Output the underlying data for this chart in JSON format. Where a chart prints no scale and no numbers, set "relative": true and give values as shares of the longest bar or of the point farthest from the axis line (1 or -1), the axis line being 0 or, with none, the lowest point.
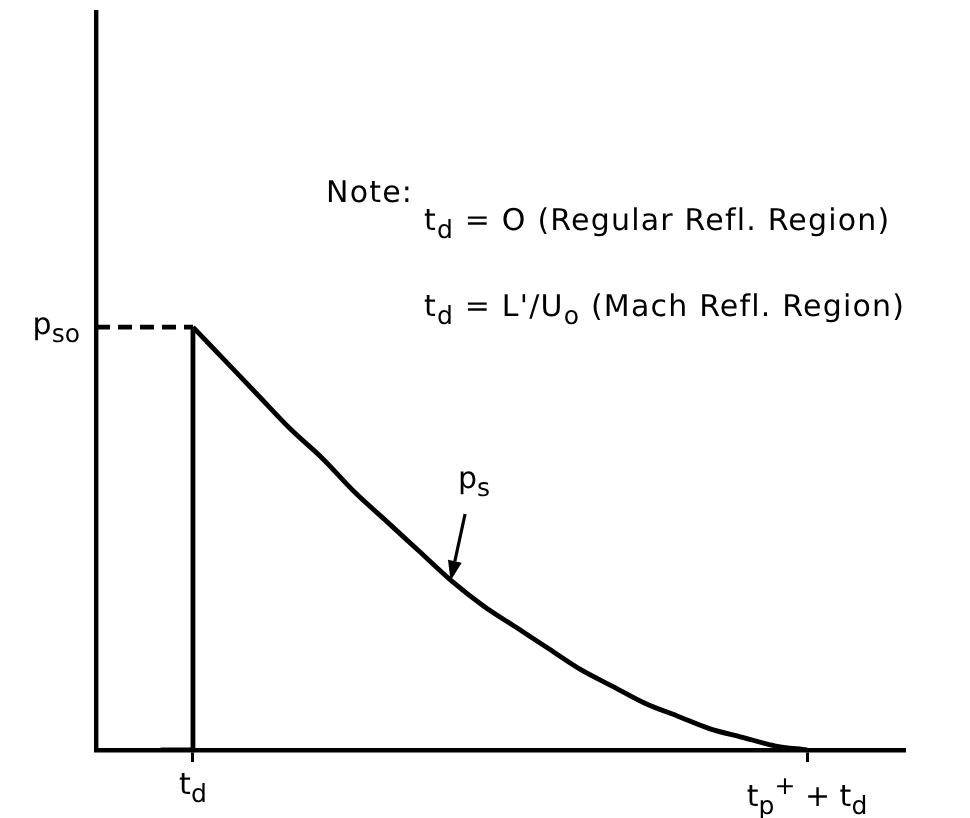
{
  "chart_data": {
    "type": "line",
    "relative": true,
    "annotations": [
      "Note:",
      "t$_{d}$ = O (Regular Refl. Region)",
      "t$_{d}$ = L'/U$_{o}$ (Mach Refl. Region)",
      "p$_{s}$",
      "p$_{so}$"
    ],
    "categories": [
      null,
      null,
      null,
      "t$_{d}$",
      null,
      null,
      null,
      null,
      null,
      null,
      null,
      null,
      null,
      null,
      null,
      null,
      null,
      null,
      null,
      null,
      null,
      null,
      "t$_{p}$$^{+}$ + t$_{d}$",
      null,
      null,
      null
    ],
    "tick_labels": "x",
    "marker": "none",
    "legend": false,
    "series": [
      {
        "color": "#000000",
        "line_style": "dashed",
        "values": [
          1,
          1,
          1,
          1,
          null,
          null,
          null,
          null,
          null,
          null,
          null,
          null,
          null,
          null,
          null,
          null,
          null,
          null,
          null,
          null,
          null,
          null,
          null,
          null,
          null,
          null
        ]
      },
      {
        "type": "step",
        "color": "#000000",
        "line_style": "solid",
        "values": [
          null,
          null,
          0,
          1,
          null,
          null,
          null,
          null,
          null,
          null,
          null,
          null,
          null,
          null,
          null,
          null,
          null,
          null,
          null,
          null,
          null,
          null,
          null,
          null,
          null,
          null
        ]
      },
      {
        "color": "#000000",
        "line_style": "solid",
        "values": [
          null,
          null,
          null,
          1,
          0.92,
          0.84,
          0.76,
          0.69,
          0.61,
          0.54,
          0.47,
          0.4,
          0.34,
          0.29,
          0.24,
          0.19,
          0.15,
          0.11,
          0.08,
          0.05,
          0.03,
          0.01,
          0,
          null,
          null,
          null
        ]
      }
    ]
  }
}
